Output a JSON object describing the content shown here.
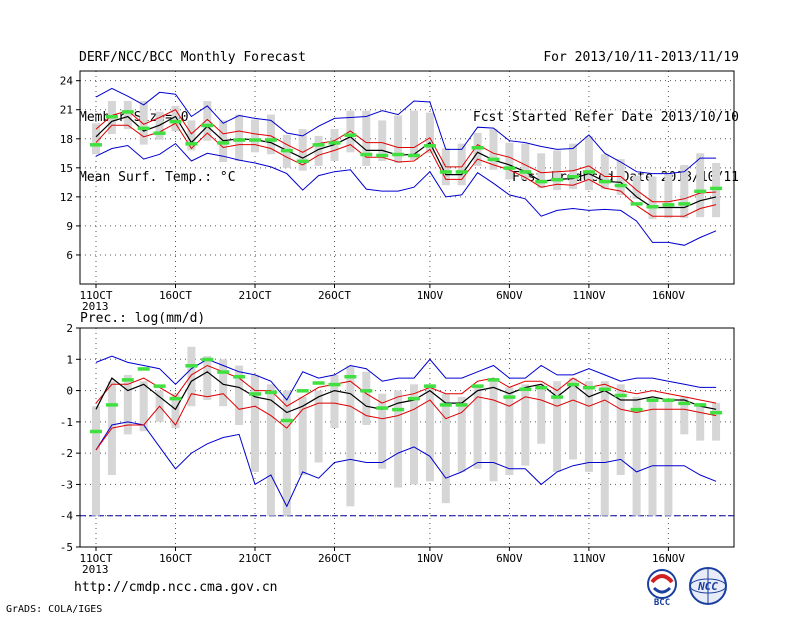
{
  "header": {
    "left": [
      "DERF/NCC/BCC Monthly Forecast",
      "Member Size=40",
      "Mean Surf. Temp.: °C"
    ],
    "right": [
      "For 2013/10/11-2013/11/19",
      "Fcst Started Refer Date 2013/10/10",
      "Fcst Produced Date 2013/10/11"
    ]
  },
  "footer": {
    "url": "http://cmdp.ncc.cma.gov.cn",
    "grads": "GrADS: COLA/IGES"
  },
  "logos": {
    "bcc": "BCC",
    "ncc": "NCC"
  },
  "colors": {
    "box": "#d6d6d6",
    "median": "#000000",
    "quartile": "#e00000",
    "extreme": "#0000d0",
    "obs": "#40e040",
    "refline": "#0000a0",
    "grid": "#555555"
  },
  "x_ticks": [
    {
      "day": 1,
      "label": "11OCT"
    },
    {
      "day": 6,
      "label": "16OCT"
    },
    {
      "day": 11,
      "label": "21OCT"
    },
    {
      "day": 16,
      "label": "26OCT"
    },
    {
      "day": 22,
      "label": "1NOV"
    },
    {
      "day": 27,
      "label": "6NOV"
    },
    {
      "day": 32,
      "label": "11NOV"
    },
    {
      "day": 37,
      "label": "16NOV"
    }
  ],
  "x_year": "2013",
  "chart_data": [
    {
      "type": "box",
      "title": "Mean Surf. Temp.: °C",
      "ylim": [
        3,
        25
      ],
      "yticks": [
        6,
        9,
        12,
        15,
        18,
        21,
        24
      ],
      "grid": true,
      "x": [
        1,
        2,
        3,
        4,
        5,
        6,
        7,
        8,
        9,
        10,
        11,
        12,
        13,
        14,
        15,
        16,
        17,
        18,
        19,
        20,
        21,
        22,
        23,
        24,
        25,
        26,
        27,
        28,
        29,
        30,
        31,
        32,
        33,
        34,
        35,
        36,
        37,
        38,
        39,
        40
      ],
      "box_low": [
        16.4,
        18.5,
        19.0,
        17.4,
        17.9,
        18.8,
        16.8,
        17.8,
        15.6,
        15.7,
        16.6,
        16.4,
        15.0,
        14.7,
        15.2,
        15.7,
        16.6,
        15.2,
        15.7,
        15.5,
        15.8,
        16.5,
        13.2,
        13.2,
        15.2,
        14.8,
        13.8,
        13.8,
        12.9,
        12.7,
        12.8,
        12.7,
        12.8,
        12.2,
        11.8,
        9.7,
        9.8,
        9.8,
        9.9,
        9.9
      ],
      "box_high": [
        19.6,
        21.9,
        21.9,
        21.9,
        20.8,
        21.4,
        19.9,
        21.9,
        19.9,
        20.5,
        20.0,
        20.5,
        18.4,
        19.0,
        18.3,
        19.0,
        20.9,
        20.9,
        19.9,
        20.4,
        20.9,
        20.7,
        17.0,
        17.5,
        18.6,
        19.0,
        17.6,
        17.5,
        16.5,
        16.8,
        17.5,
        18.3,
        16.4,
        15.9,
        14.2,
        14.1,
        14.5,
        15.3,
        16.5,
        15.5
      ],
      "median": [
        18.2,
        19.8,
        20.3,
        18.8,
        19.4,
        20.3,
        17.6,
        19.3,
        17.8,
        18.0,
        17.9,
        17.6,
        16.8,
        16.0,
        16.9,
        17.4,
        18.2,
        16.8,
        16.8,
        16.3,
        16.4,
        17.6,
        14.3,
        14.3,
        16.6,
        15.8,
        15.3,
        14.6,
        13.6,
        13.8,
        13.9,
        14.4,
        13.6,
        13.5,
        12.0,
        10.9,
        10.9,
        10.9,
        11.6,
        12.0
      ],
      "q_low": [
        17.6,
        19.4,
        19.4,
        18.2,
        18.7,
        19.6,
        17.0,
        18.6,
        17.1,
        17.4,
        17.4,
        17.0,
        16.1,
        15.3,
        16.3,
        16.8,
        17.4,
        16.1,
        16.1,
        15.6,
        15.7,
        16.9,
        13.8,
        13.8,
        15.9,
        15.3,
        14.8,
        14.0,
        13.0,
        13.3,
        13.2,
        13.8,
        12.9,
        12.6,
        11.1,
        10.0,
        10.0,
        10.0,
        10.8,
        11.2
      ],
      "q_high": [
        19.0,
        20.4,
        20.9,
        19.5,
        20.2,
        21.0,
        18.5,
        20.0,
        18.5,
        18.8,
        18.5,
        18.3,
        17.4,
        16.6,
        17.5,
        17.8,
        18.8,
        17.6,
        17.6,
        17.1,
        17.1,
        18.1,
        15.1,
        15.1,
        17.4,
        16.5,
        16.1,
        15.3,
        14.5,
        14.6,
        14.7,
        15.2,
        14.1,
        14.1,
        12.7,
        11.5,
        11.5,
        11.8,
        12.4,
        12.5
      ],
      "min": [
        16.2,
        17.0,
        17.3,
        15.9,
        16.4,
        17.5,
        15.7,
        16.5,
        16.2,
        15.8,
        15.5,
        15.1,
        14.4,
        12.7,
        14.2,
        14.6,
        14.8,
        12.8,
        12.6,
        12.6,
        13.0,
        14.6,
        12.0,
        12.2,
        14.5,
        13.4,
        12.2,
        11.8,
        10.0,
        10.6,
        10.8,
        10.6,
        10.7,
        10.6,
        9.5,
        7.3,
        7.3,
        7.0,
        7.8,
        8.5
      ],
      "max": [
        22.3,
        23.2,
        22.4,
        21.5,
        22.8,
        22.6,
        20.3,
        21.4,
        19.6,
        20.4,
        20.1,
        19.9,
        18.6,
        18.3,
        19.3,
        20.1,
        20.2,
        20.3,
        20.9,
        20.5,
        21.9,
        21.8,
        16.9,
        16.9,
        19.2,
        19.1,
        17.8,
        17.6,
        17.2,
        16.9,
        17.0,
        18.4,
        16.5,
        15.6,
        14.6,
        14.4,
        14.4,
        14.6,
        16.0,
        16.0
      ],
      "observed": [
        17.4,
        20.3,
        20.8,
        19.1,
        18.6,
        19.8,
        17.5,
        19.4,
        17.6,
        17.9,
        17.9,
        17.9,
        16.8,
        15.7,
        17.4,
        17.6,
        18.4,
        16.4,
        16.3,
        16.4,
        16.3,
        17.3,
        14.6,
        14.6,
        17.1,
        15.9,
        15.0,
        14.6,
        13.6,
        13.8,
        14.1,
        14.6,
        13.6,
        13.2,
        11.3,
        11.0,
        11.2,
        11.3,
        12.6,
        12.9
      ]
    },
    {
      "type": "box",
      "title": "Prec.: log(mm/d)",
      "ylim": [
        -5,
        2
      ],
      "yticks": [
        -5,
        -4,
        -3,
        -2,
        -1,
        0,
        1,
        2
      ],
      "grid": true,
      "ref_line": -4,
      "x": [
        1,
        2,
        3,
        4,
        5,
        6,
        7,
        8,
        9,
        10,
        11,
        12,
        13,
        14,
        15,
        16,
        17,
        18,
        19,
        20,
        21,
        22,
        23,
        24,
        25,
        26,
        27,
        28,
        29,
        30,
        31,
        32,
        33,
        34,
        35,
        36,
        37,
        38,
        39,
        40
      ],
      "box_low": [
        -4.0,
        -2.7,
        -1.4,
        -1.3,
        -1.0,
        -1.2,
        -0.5,
        -0.3,
        -0.5,
        -1.1,
        -2.6,
        -4.0,
        -4.0,
        -2.7,
        -2.3,
        -1.2,
        -3.7,
        -1.1,
        -2.5,
        -3.1,
        -3.0,
        -2.9,
        -3.6,
        -2.6,
        -2.5,
        -2.9,
        -2.7,
        -2.4,
        -1.7,
        -2.6,
        -2.2,
        -2.6,
        -4.0,
        -2.7,
        -4.0,
        -4.0,
        -4.0,
        -1.4,
        -1.6,
        -1.6
      ],
      "box_high": [
        -0.5,
        0.3,
        0.5,
        0.3,
        0.0,
        -0.1,
        1.4,
        1.1,
        1.0,
        0.8,
        0.5,
        0.2,
        0.0,
        -0.2,
        0.0,
        0.5,
        0.8,
        0.6,
        -0.1,
        0.0,
        0.2,
        0.2,
        -0.1,
        -0.2,
        0.1,
        0.4,
        0.1,
        0.2,
        0.2,
        0.3,
        0.4,
        0.3,
        0.3,
        0.2,
        -0.2,
        -0.2,
        -0.3,
        -0.2,
        -0.4,
        -0.4
      ],
      "median": [
        -0.6,
        0.4,
        0.0,
        0.2,
        -0.2,
        -0.6,
        0.3,
        0.6,
        0.2,
        0.1,
        -0.2,
        -0.3,
        -0.7,
        -0.5,
        -0.2,
        0.0,
        -0.1,
        -0.5,
        -0.6,
        -0.4,
        -0.3,
        0.0,
        -0.4,
        -0.4,
        0.0,
        0.1,
        -0.1,
        0.1,
        0.2,
        -0.2,
        0.2,
        -0.2,
        0.0,
        -0.3,
        -0.3,
        -0.2,
        -0.3,
        -0.3,
        -0.5,
        -0.6
      ],
      "q_low": [
        -1.9,
        -1.2,
        -1.1,
        -1.1,
        -0.5,
        -1.1,
        -0.1,
        -0.2,
        -0.1,
        -0.6,
        -0.5,
        -0.8,
        -1.2,
        -0.6,
        -0.4,
        -0.4,
        -0.5,
        -0.8,
        -0.9,
        -0.8,
        -0.6,
        -0.3,
        -0.9,
        -0.7,
        -0.2,
        -0.3,
        -0.5,
        -0.2,
        -0.3,
        -0.5,
        -0.3,
        -0.5,
        -0.3,
        -0.6,
        -0.7,
        -0.6,
        -0.6,
        -0.6,
        -0.7,
        -0.8
      ],
      "q_high": [
        -0.4,
        0.2,
        0.2,
        0.4,
        0.1,
        -0.2,
        0.5,
        0.8,
        0.6,
        0.4,
        0.0,
        0.0,
        -0.5,
        -0.2,
        0.1,
        0.2,
        0.3,
        -0.1,
        -0.4,
        -0.2,
        -0.1,
        0.1,
        -0.1,
        -0.1,
        0.3,
        0.4,
        0.1,
        0.3,
        0.3,
        0.0,
        0.4,
        0.1,
        0.2,
        0.0,
        -0.1,
        0.0,
        -0.1,
        -0.2,
        -0.3,
        -0.4
      ],
      "min": [
        -1.9,
        -1.1,
        -1.0,
        -1.1,
        -1.8,
        -2.5,
        -2.0,
        -1.7,
        -1.5,
        -1.4,
        -3.0,
        -2.7,
        -3.7,
        -2.6,
        -2.8,
        -2.3,
        -2.2,
        -2.3,
        -2.3,
        -2.0,
        -1.8,
        -2.1,
        -2.8,
        -2.6,
        -2.3,
        -2.3,
        -2.5,
        -2.5,
        -3.0,
        -2.6,
        -2.4,
        -2.3,
        -2.3,
        -2.2,
        -2.6,
        -2.4,
        -2.4,
        -2.4,
        -2.7,
        -2.9
      ],
      "max": [
        0.9,
        1.1,
        0.9,
        0.8,
        0.7,
        0.2,
        0.7,
        1.0,
        0.8,
        0.6,
        0.5,
        0.3,
        -0.3,
        0.6,
        0.4,
        0.5,
        0.8,
        0.7,
        0.3,
        0.4,
        0.4,
        1.0,
        0.4,
        0.4,
        0.6,
        0.8,
        0.4,
        0.4,
        0.8,
        0.5,
        0.5,
        0.7,
        0.5,
        0.3,
        0.4,
        0.4,
        0.3,
        0.2,
        0.1,
        0.1
      ],
      "observed": [
        -1.3,
        -0.45,
        0.35,
        0.7,
        0.15,
        -0.25,
        0.8,
        1.0,
        0.6,
        0.45,
        -0.1,
        -0.05,
        -0.95,
        0.0,
        0.25,
        0.2,
        0.45,
        0.0,
        -0.55,
        -0.6,
        -0.25,
        0.15,
        -0.45,
        -0.45,
        0.15,
        0.35,
        -0.2,
        0.05,
        0.1,
        -0.2,
        0.2,
        0.1,
        0.05,
        -0.15,
        -0.6,
        -0.3,
        -0.3,
        -0.4,
        -0.45,
        -0.7
      ]
    }
  ]
}
